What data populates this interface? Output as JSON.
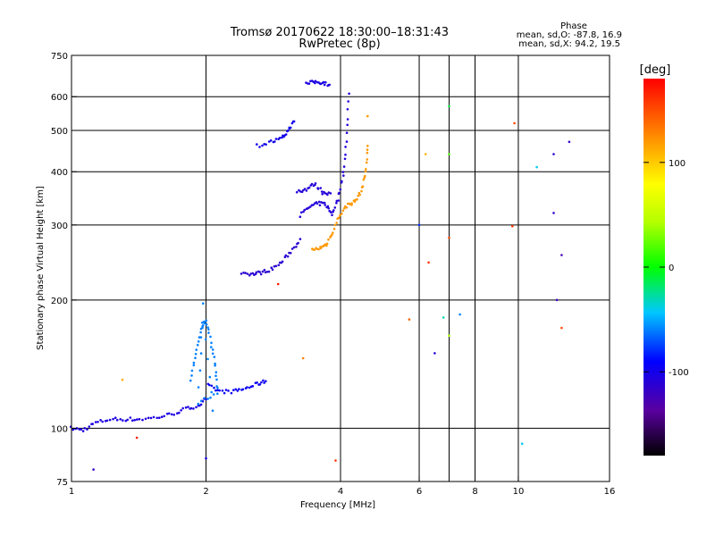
{
  "header": {
    "title_line1": "Tromsø 20170622 18:30:00–18:31:43",
    "title_line2": "RwPretec (8p)",
    "phase_label": "Phase",
    "stat_o": "mean, sd,O:  -87.8, 16.9",
    "stat_x": "mean, sd,X:  94.2, 19.5"
  },
  "chart_data": {
    "type": "scatter",
    "xscale": "log",
    "yscale": "log",
    "xlabel": "Frequency [MHz]",
    "ylabel": "Stationary phase Virtual Height [km]",
    "xlim": [
      1,
      16
    ],
    "ylim": [
      75,
      750
    ],
    "xticks": [
      1,
      2,
      4,
      6,
      8,
      10,
      16
    ],
    "xtick_labels": [
      "1",
      "2",
      "4",
      "6",
      "8",
      "10",
      "16"
    ],
    "x_gridlines": [
      2,
      4,
      6,
      7,
      8,
      10
    ],
    "yticks": [
      75,
      100,
      200,
      300,
      400,
      500,
      600,
      750
    ],
    "ytick_labels": [
      "75",
      "100",
      "200",
      "300",
      "400",
      "500",
      "600",
      "750"
    ],
    "y_gridlines": [
      100,
      200,
      300,
      400,
      500,
      600
    ],
    "grid": true,
    "colorbar": {
      "label": "[deg]",
      "range": [
        -180,
        180
      ],
      "ticks": [
        100,
        0,
        -100
      ],
      "tick_labels": [
        "100",
        "0",
        "-100"
      ]
    },
    "point_traces": [
      {
        "name": "O-mode lower trace",
        "phase": -105,
        "x": [
          1.0,
          1.06,
          1.13,
          1.22,
          1.32,
          1.42,
          1.55,
          1.68,
          1.8,
          1.92,
          2.0
        ],
        "y": [
          100,
          99,
          103,
          105,
          105,
          105,
          106,
          108,
          111,
          113,
          117
        ]
      },
      {
        "name": "O-mode low trace 2",
        "phase": -95,
        "x": [
          2.02,
          2.15,
          2.3,
          2.45,
          2.6,
          2.72
        ],
        "y": [
          126,
          122,
          122,
          124,
          127,
          129
        ]
      },
      {
        "name": "O-mode mid trace",
        "phase": -112,
        "x": [
          2.4,
          2.55,
          2.65,
          2.8,
          2.95,
          3.1,
          3.25
        ],
        "y": [
          232,
          230,
          232,
          236,
          245,
          260,
          278
        ]
      },
      {
        "name": "O-mode upper trace",
        "phase": -108,
        "x": [
          3.25,
          3.4,
          3.55,
          3.7,
          3.82,
          3.95,
          4.05,
          4.12,
          4.18
        ],
        "y": [
          316,
          330,
          337,
          336,
          318,
          345,
          390,
          470,
          610
        ]
      },
      {
        "name": "O-mode bracket trace",
        "phase": -108,
        "x": [
          3.2,
          3.35,
          3.5,
          3.65,
          3.8
        ],
        "y": [
          360,
          364,
          375,
          358,
          356
        ]
      },
      {
        "name": "E/F1 high trace",
        "phase": -104,
        "x": [
          3.35,
          3.5,
          3.65,
          3.78
        ],
        "y": [
          643,
          650,
          648,
          640
        ]
      },
      {
        "name": "Upper-left trace",
        "phase": -100,
        "x": [
          2.6,
          2.8,
          2.95,
          3.05,
          3.15
        ],
        "y": [
          460,
          470,
          478,
          500,
          525
        ]
      },
      {
        "name": "X-mode trace",
        "phase": 120,
        "x": [
          3.45,
          3.6,
          3.72,
          3.85,
          4.0,
          4.15,
          4.3,
          4.45,
          4.55,
          4.6
        ],
        "y": [
          262,
          265,
          270,
          290,
          318,
          335,
          340,
          360,
          400,
          460
        ]
      },
      {
        "name": "F-region scatter cluster",
        "phase": -60,
        "x": [
          1.85,
          1.9,
          1.95,
          2.0,
          2.05,
          2.1,
          2.12,
          1.92,
          1.97,
          2.07
        ],
        "y": [
          130,
          150,
          170,
          180,
          160,
          140,
          120,
          115,
          195,
          110
        ]
      }
    ],
    "isolated_points": [
      {
        "x": 7.0,
        "y": 570,
        "phase": -10
      },
      {
        "x": 7.0,
        "y": 440,
        "phase": 20
      },
      {
        "x": 6.2,
        "y": 440,
        "phase": 110
      },
      {
        "x": 9.8,
        "y": 520,
        "phase": 150
      },
      {
        "x": 13.0,
        "y": 470,
        "phase": -115
      },
      {
        "x": 12.0,
        "y": 440,
        "phase": -110
      },
      {
        "x": 11.0,
        "y": 410,
        "phase": -40
      },
      {
        "x": 12.0,
        "y": 320,
        "phase": -115
      },
      {
        "x": 12.5,
        "y": 255,
        "phase": -125
      },
      {
        "x": 7.0,
        "y": 280,
        "phase": 150
      },
      {
        "x": 6.3,
        "y": 245,
        "phase": 160
      },
      {
        "x": 6.0,
        "y": 300,
        "phase": -80
      },
      {
        "x": 5.7,
        "y": 180,
        "phase": 140
      },
      {
        "x": 6.8,
        "y": 182,
        "phase": -30
      },
      {
        "x": 7.4,
        "y": 185,
        "phase": -60
      },
      {
        "x": 7.0,
        "y": 165,
        "phase": 40
      },
      {
        "x": 12.2,
        "y": 200,
        "phase": -120
      },
      {
        "x": 12.5,
        "y": 172,
        "phase": 150
      },
      {
        "x": 10.2,
        "y": 92,
        "phase": -40
      },
      {
        "x": 9.7,
        "y": 298,
        "phase": 160
      },
      {
        "x": 3.3,
        "y": 146,
        "phase": 130
      },
      {
        "x": 3.9,
        "y": 84,
        "phase": 160
      },
      {
        "x": 1.4,
        "y": 95,
        "phase": 170
      },
      {
        "x": 1.12,
        "y": 80,
        "phase": -120
      },
      {
        "x": 2.0,
        "y": 85,
        "phase": -100
      },
      {
        "x": 2.9,
        "y": 218,
        "phase": 170
      },
      {
        "x": 6.5,
        "y": 150,
        "phase": -110
      },
      {
        "x": 1.3,
        "y": 130,
        "phase": 110
      },
      {
        "x": 4.6,
        "y": 540,
        "phase": 120
      }
    ]
  }
}
